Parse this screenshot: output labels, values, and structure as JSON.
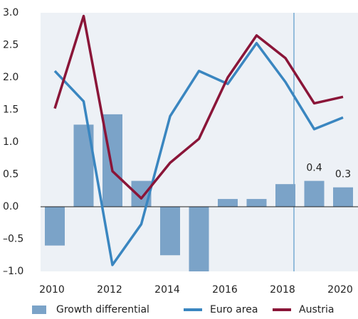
{
  "chart_data": {
    "type": "bar_line",
    "categories": [
      "2010",
      null,
      "2012",
      null,
      "2014",
      null,
      "2016",
      null,
      "2018",
      null,
      "2020"
    ],
    "series": [
      {
        "name": "Growth differential",
        "type": "bar",
        "color": "#7ba3c8",
        "values": [
          -0.6,
          1.27,
          1.43,
          0.4,
          -0.75,
          -1.0,
          0.12,
          0.12,
          0.35,
          0.4,
          0.3
        ],
        "value_labels": [
          null,
          null,
          null,
          null,
          null,
          null,
          null,
          null,
          null,
          "0.4",
          "0.3"
        ]
      },
      {
        "name": "Euro area",
        "type": "line",
        "color": "#3a86c0",
        "values": [
          2.1,
          1.63,
          -0.9,
          -0.27,
          1.4,
          2.1,
          1.9,
          2.53,
          1.93,
          1.2,
          1.38
        ]
      },
      {
        "name": "Austria",
        "type": "line",
        "color": "#8a1538",
        "values": [
          1.52,
          2.95,
          0.55,
          0.13,
          0.68,
          1.05,
          2.0,
          2.65,
          2.3,
          1.6,
          1.7
        ]
      }
    ],
    "ylim": [
      -1.0,
      3.0
    ],
    "yticks": [
      {
        "value": 3,
        "label": "3.0"
      },
      {
        "value": 2.5,
        "label": "2.5"
      },
      {
        "value": 2,
        "label": "2.0"
      },
      {
        "value": 1.5,
        "label": "1.5"
      },
      {
        "value": 1,
        "label": "1.0"
      },
      {
        "value": 0.5,
        "label": "0.5"
      },
      {
        "value": 0,
        "label": "0.0"
      },
      {
        "value": -0.5,
        "label": "–0.5"
      },
      {
        "value": -1,
        "label": "–1.0"
      }
    ],
    "legend": "bottom"
  }
}
